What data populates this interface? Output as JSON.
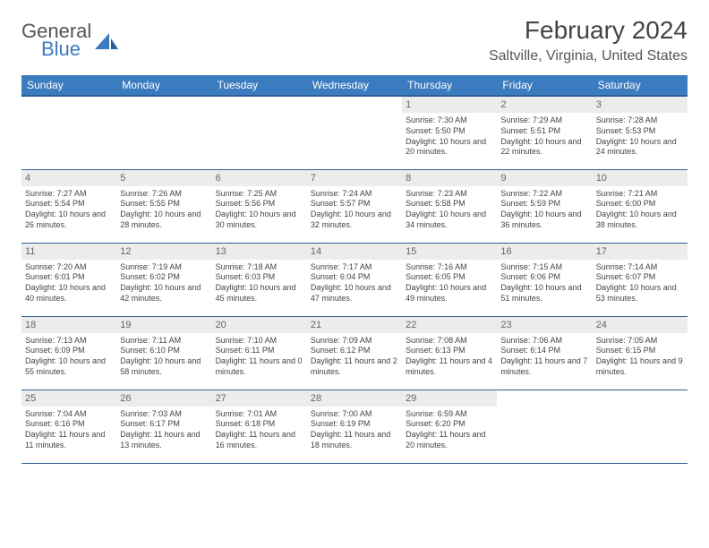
{
  "logo": {
    "general": "General",
    "blue": "Blue"
  },
  "title": "February 2024",
  "location": "Saltville, Virginia, United States",
  "colors": {
    "header_bg": "#3b7bbf",
    "header_rule": "#2d5f94",
    "daynum_bg": "#ececec",
    "text": "#444444"
  },
  "weekdays": [
    "Sunday",
    "Monday",
    "Tuesday",
    "Wednesday",
    "Thursday",
    "Friday",
    "Saturday"
  ],
  "weeks": [
    [
      null,
      null,
      null,
      null,
      {
        "d": "1",
        "sr": "7:30 AM",
        "ss": "5:50 PM",
        "dl": "10 hours and 20 minutes."
      },
      {
        "d": "2",
        "sr": "7:29 AM",
        "ss": "5:51 PM",
        "dl": "10 hours and 22 minutes."
      },
      {
        "d": "3",
        "sr": "7:28 AM",
        "ss": "5:53 PM",
        "dl": "10 hours and 24 minutes."
      }
    ],
    [
      {
        "d": "4",
        "sr": "7:27 AM",
        "ss": "5:54 PM",
        "dl": "10 hours and 26 minutes."
      },
      {
        "d": "5",
        "sr": "7:26 AM",
        "ss": "5:55 PM",
        "dl": "10 hours and 28 minutes."
      },
      {
        "d": "6",
        "sr": "7:25 AM",
        "ss": "5:56 PM",
        "dl": "10 hours and 30 minutes."
      },
      {
        "d": "7",
        "sr": "7:24 AM",
        "ss": "5:57 PM",
        "dl": "10 hours and 32 minutes."
      },
      {
        "d": "8",
        "sr": "7:23 AM",
        "ss": "5:58 PM",
        "dl": "10 hours and 34 minutes."
      },
      {
        "d": "9",
        "sr": "7:22 AM",
        "ss": "5:59 PM",
        "dl": "10 hours and 36 minutes."
      },
      {
        "d": "10",
        "sr": "7:21 AM",
        "ss": "6:00 PM",
        "dl": "10 hours and 38 minutes."
      }
    ],
    [
      {
        "d": "11",
        "sr": "7:20 AM",
        "ss": "6:01 PM",
        "dl": "10 hours and 40 minutes."
      },
      {
        "d": "12",
        "sr": "7:19 AM",
        "ss": "6:02 PM",
        "dl": "10 hours and 42 minutes."
      },
      {
        "d": "13",
        "sr": "7:18 AM",
        "ss": "6:03 PM",
        "dl": "10 hours and 45 minutes."
      },
      {
        "d": "14",
        "sr": "7:17 AM",
        "ss": "6:04 PM",
        "dl": "10 hours and 47 minutes."
      },
      {
        "d": "15",
        "sr": "7:16 AM",
        "ss": "6:05 PM",
        "dl": "10 hours and 49 minutes."
      },
      {
        "d": "16",
        "sr": "7:15 AM",
        "ss": "6:06 PM",
        "dl": "10 hours and 51 minutes."
      },
      {
        "d": "17",
        "sr": "7:14 AM",
        "ss": "6:07 PM",
        "dl": "10 hours and 53 minutes."
      }
    ],
    [
      {
        "d": "18",
        "sr": "7:13 AM",
        "ss": "6:09 PM",
        "dl": "10 hours and 55 minutes."
      },
      {
        "d": "19",
        "sr": "7:11 AM",
        "ss": "6:10 PM",
        "dl": "10 hours and 58 minutes."
      },
      {
        "d": "20",
        "sr": "7:10 AM",
        "ss": "6:11 PM",
        "dl": "11 hours and 0 minutes."
      },
      {
        "d": "21",
        "sr": "7:09 AM",
        "ss": "6:12 PM",
        "dl": "11 hours and 2 minutes."
      },
      {
        "d": "22",
        "sr": "7:08 AM",
        "ss": "6:13 PM",
        "dl": "11 hours and 4 minutes."
      },
      {
        "d": "23",
        "sr": "7:06 AM",
        "ss": "6:14 PM",
        "dl": "11 hours and 7 minutes."
      },
      {
        "d": "24",
        "sr": "7:05 AM",
        "ss": "6:15 PM",
        "dl": "11 hours and 9 minutes."
      }
    ],
    [
      {
        "d": "25",
        "sr": "7:04 AM",
        "ss": "6:16 PM",
        "dl": "11 hours and 11 minutes."
      },
      {
        "d": "26",
        "sr": "7:03 AM",
        "ss": "6:17 PM",
        "dl": "11 hours and 13 minutes."
      },
      {
        "d": "27",
        "sr": "7:01 AM",
        "ss": "6:18 PM",
        "dl": "11 hours and 16 minutes."
      },
      {
        "d": "28",
        "sr": "7:00 AM",
        "ss": "6:19 PM",
        "dl": "11 hours and 18 minutes."
      },
      {
        "d": "29",
        "sr": "6:59 AM",
        "ss": "6:20 PM",
        "dl": "11 hours and 20 minutes."
      },
      null,
      null
    ]
  ],
  "labels": {
    "sunrise": "Sunrise: ",
    "sunset": "Sunset: ",
    "daylight": "Daylight: "
  }
}
